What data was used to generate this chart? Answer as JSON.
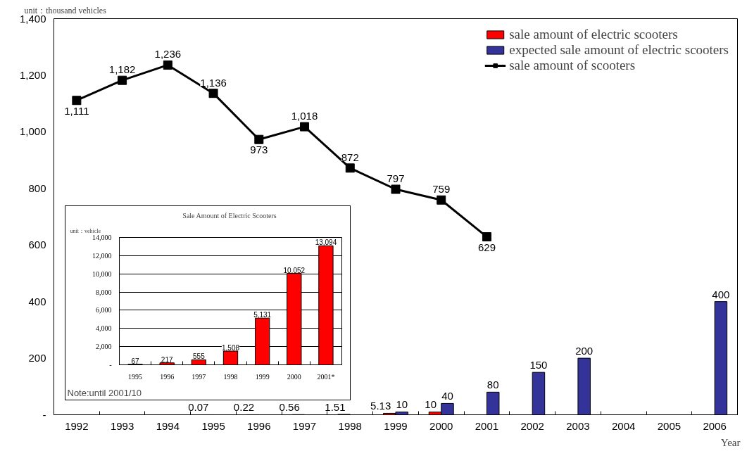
{
  "chart_data": [
    {
      "type": "bar",
      "ylabel": "unit：thousand vehicles",
      "xlabel": "Year",
      "categories": [
        "1992",
        "1993",
        "1994",
        "1995",
        "1996",
        "1997",
        "1998",
        "1999",
        "2000",
        "2001",
        "2002",
        "2003",
        "2004",
        "2005",
        "2006"
      ],
      "ylim": [
        0,
        1400
      ],
      "yticks": [
        {
          "value": 0,
          "label": "-"
        },
        200,
        400,
        600,
        800,
        {
          "value": 1000,
          "label": "1,000"
        },
        {
          "value": 1200,
          "label": "1,200"
        },
        {
          "value": 1400,
          "label": "1,400"
        }
      ],
      "grid": false,
      "legend": "top right",
      "series": [
        {
          "name": "sale amount of electric scooters",
          "color": "#ff0000",
          "values": [
            null,
            null,
            null,
            0.07,
            0.22,
            0.56,
            1.51,
            5.13,
            10,
            null,
            null,
            null,
            null,
            null,
            null
          ],
          "value_labels": [
            null,
            null,
            null,
            "0.07",
            "0.22",
            "0.56",
            "1.51",
            "5.13",
            "10",
            null,
            null,
            null,
            null,
            null,
            null
          ]
        },
        {
          "name": "expected sale amount of electric scooters",
          "color": "#333399",
          "values": [
            null,
            null,
            null,
            null,
            null,
            null,
            null,
            10,
            40,
            80,
            150,
            200,
            null,
            null,
            400
          ],
          "value_labels": [
            null,
            null,
            null,
            null,
            null,
            null,
            null,
            "10",
            "40",
            "80",
            "150",
            "200",
            null,
            null,
            "400"
          ]
        },
        {
          "name": "sale amount of scooters",
          "type": "line",
          "color": "#000000",
          "marker": "square",
          "values": [
            1111,
            1182,
            1236,
            1136,
            973,
            1018,
            872,
            797,
            759,
            629,
            null,
            null,
            null,
            null,
            null
          ],
          "value_labels": [
            "1,111",
            "1,182",
            "1,236",
            "1,136",
            "973",
            "1,018",
            "872",
            "797",
            "759",
            "629",
            null,
            null,
            null,
            null,
            null
          ]
        }
      ]
    },
    {
      "type": "bar",
      "title": "Sale  Amount of Electric Scooters",
      "ylabel": "unit：vehicle",
      "categories": [
        "1995",
        "1996",
        "1997",
        "1998",
        "1999",
        "2000",
        "2001*"
      ],
      "values": [
        67,
        217,
        555,
        1508,
        5131,
        10052,
        13094
      ],
      "value_labels": [
        "67",
        "217",
        "555",
        "1,508",
        "5,131",
        "10,052",
        "13,094"
      ],
      "color": "#ff0000",
      "ylim": [
        0,
        14000
      ],
      "yticks": [
        {
          "value": 0,
          "label": "-"
        },
        {
          "value": 2000,
          "label": "2,000"
        },
        {
          "value": 4000,
          "label": "4,000"
        },
        {
          "value": 6000,
          "label": "6,000"
        },
        {
          "value": 8000,
          "label": "8,000"
        },
        {
          "value": 10000,
          "label": "10,000"
        },
        {
          "value": 12000,
          "label": "12,000"
        },
        {
          "value": 14000,
          "label": "14,000"
        }
      ],
      "grid": "y",
      "annotations": [
        "Note:until 2001/10"
      ]
    }
  ]
}
